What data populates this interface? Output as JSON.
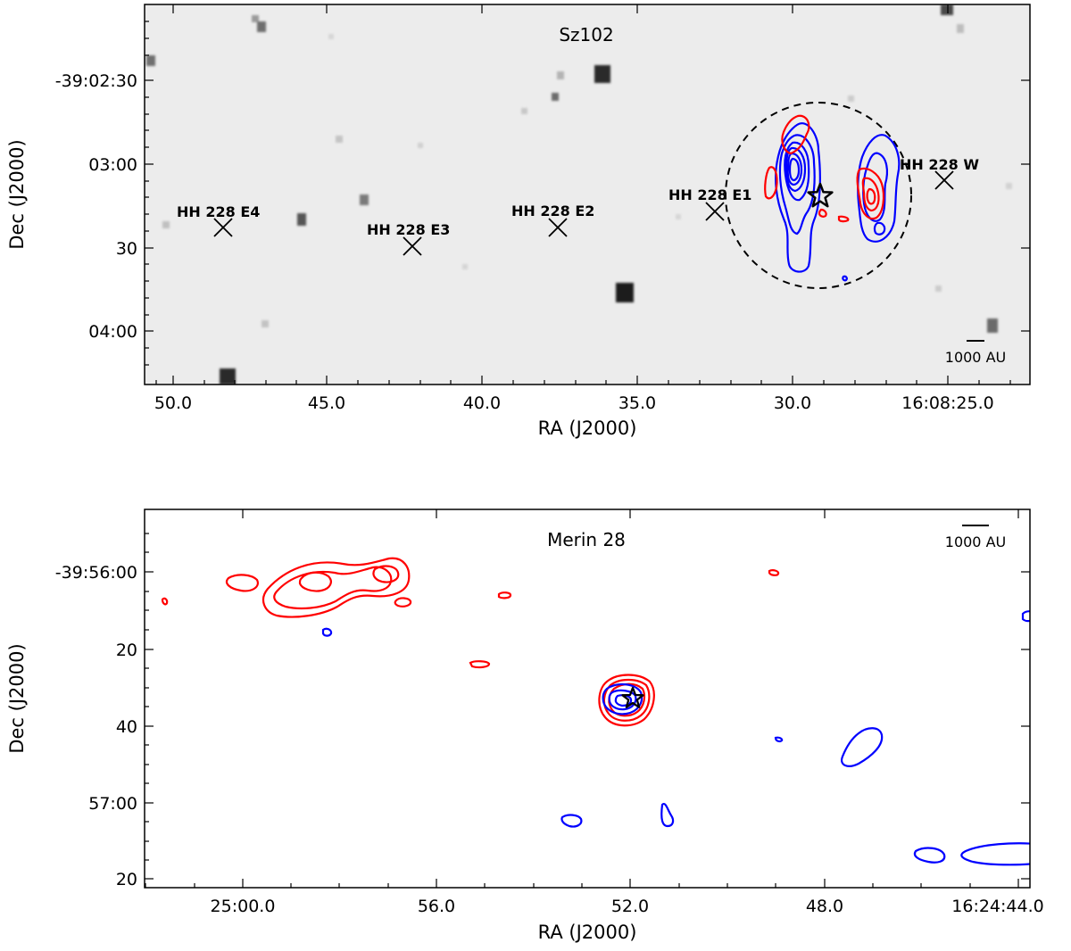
{
  "chart_data": [
    {
      "type": "image",
      "title": "Sz102",
      "xlabel": "RA (J2000)",
      "ylabel": "Dec (J2000)",
      "x_ticks": [
        "50.0",
        "45.0",
        "40.0",
        "35.0",
        "30.0",
        "16:08:25.0"
      ],
      "y_ticks": [
        "-39:02:30",
        "03:00",
        "30",
        "04:00"
      ],
      "scale_bar_label": "1000 AU",
      "knots": [
        {
          "label": "HH 228 E4"
        },
        {
          "label": "HH 228 E3"
        },
        {
          "label": "HH 228 E2"
        },
        {
          "label": "HH 228 E1"
        },
        {
          "label": "HH 228 W"
        }
      ],
      "contour_colors": {
        "red": "#ff0000",
        "blue": "#0000ff"
      },
      "background": "grayscale"
    },
    {
      "type": "contour",
      "title": "Merin 28",
      "xlabel": "RA (J2000)",
      "ylabel": "Dec (J2000)",
      "x_ticks": [
        "25:00.0",
        "56.0",
        "52.0",
        "48.0",
        "16:24:44.0"
      ],
      "y_ticks": [
        "-39:56:00",
        "20",
        "40",
        "57:00",
        "20"
      ],
      "scale_bar_label": "1000 AU",
      "contour_colors": {
        "red": "#ff0000",
        "blue": "#0000ff"
      },
      "background": "white"
    }
  ]
}
